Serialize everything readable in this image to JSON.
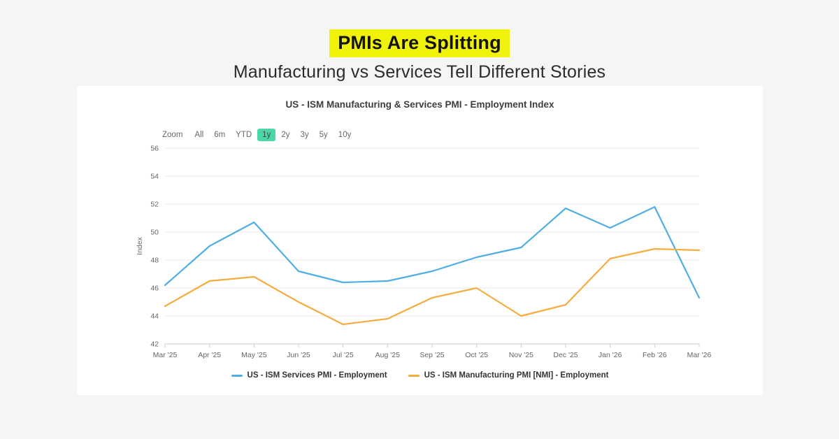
{
  "header": {
    "title": "PMIs Are Splitting",
    "subtitle": "Manufacturing vs Services Tell Different Stories",
    "highlight_color": "#f0f20a"
  },
  "chart": {
    "title": "US - ISM Manufacturing & Services PMI - Employment Index",
    "toolbar": {
      "zoom_label": "Zoom",
      "ranges": [
        "All",
        "6m",
        "YTD",
        "1y",
        "2y",
        "3y",
        "5y",
        "10y"
      ],
      "active_range": "1y",
      "active_bg": "#4cd7a6"
    }
  },
  "chart_data": {
    "type": "line",
    "title": "US - ISM Manufacturing & Services PMI - Employment Index",
    "categories": [
      "Mar '25",
      "Apr '25",
      "May '25",
      "Jun '25",
      "Jul '25",
      "Aug '25",
      "Sep '25",
      "Oct '25",
      "Nov '25",
      "Dec '25",
      "Jan '26",
      "Feb '26",
      "Mar '26"
    ],
    "series": [
      {
        "name": "US - ISM Services PMI - Employment",
        "color": "#4FAEE3",
        "values": [
          46.2,
          49.0,
          50.7,
          47.2,
          46.4,
          46.5,
          47.2,
          48.2,
          48.9,
          51.7,
          50.3,
          51.8,
          45.3
        ]
      },
      {
        "name": "US - ISM Manufacturing PMI [NMI] - Employment",
        "color": "#F7AC40",
        "values": [
          44.7,
          46.5,
          46.8,
          45.0,
          43.4,
          43.8,
          45.3,
          46.0,
          44.0,
          44.8,
          48.1,
          48.8,
          48.7
        ]
      }
    ],
    "xlabel": "",
    "ylabel": "Index",
    "ylim": [
      42,
      56
    ],
    "y_ticks": [
      42,
      44,
      46,
      48,
      50,
      52,
      54,
      56
    ],
    "grid": true,
    "legend_position": "bottom",
    "axis_text_color": "#666666",
    "grid_color": "#e8e8e8",
    "axis_line_color": "#cccccc"
  }
}
